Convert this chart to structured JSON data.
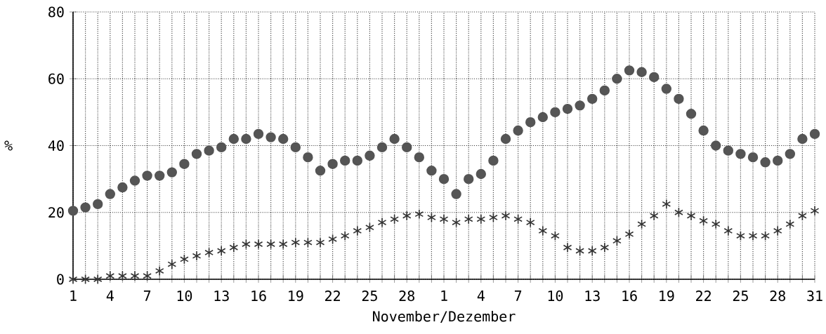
{
  "chart_data": {
    "type": "scatter",
    "xlabel": "November/Dezember",
    "ylabel": "%",
    "categories": [
      "1",
      null,
      null,
      "4",
      null,
      null,
      "7",
      null,
      null,
      "10",
      null,
      null,
      "13",
      null,
      null,
      "16",
      null,
      null,
      "19",
      null,
      null,
      "22",
      null,
      null,
      "25",
      null,
      null,
      "28",
      null,
      null,
      "1",
      null,
      null,
      "4",
      null,
      null,
      "7",
      null,
      null,
      "10",
      null,
      null,
      "13",
      null,
      null,
      "16",
      null,
      null,
      "19",
      null,
      null,
      "22",
      null,
      null,
      "25",
      null,
      null,
      "28",
      null,
      null,
      "31"
    ],
    "ylim": [
      0,
      80
    ],
    "yticks": [
      0,
      20,
      40,
      60,
      80
    ],
    "grid": true,
    "series": [
      {
        "color": "#555555",
        "marker": "circle",
        "values": [
          20.5,
          21.5,
          22.5,
          25.5,
          27.5,
          29.5,
          31,
          31,
          32,
          34.5,
          37.5,
          38.5,
          39.5,
          42,
          42,
          43.5,
          42.5,
          42,
          39.5,
          36.5,
          32.5,
          34.5,
          35.5,
          35.5,
          37,
          39.5,
          42,
          39.5,
          36.5,
          32.5,
          30,
          25.5,
          30,
          31.5,
          35.5,
          42,
          44.5,
          47,
          48.5,
          50,
          51,
          52,
          54,
          56.5,
          60,
          62.5,
          62,
          60.5,
          57,
          54,
          49.5,
          44.5,
          40,
          38.5,
          37.5,
          36.5,
          35,
          35.5,
          37.5,
          42,
          43.5
        ]
      },
      {
        "color": "#333333",
        "marker": "cross",
        "values": [
          0,
          0,
          0,
          1,
          1,
          1,
          1,
          2.5,
          4.5,
          6,
          7,
          8,
          8.5,
          9.5,
          10.5,
          10.5,
          10.5,
          10.5,
          11,
          11,
          11,
          12,
          13,
          14.5,
          15.5,
          17,
          18,
          19,
          19.5,
          18.5,
          18,
          17,
          18,
          18,
          18.5,
          19,
          18,
          17,
          14.5,
          13,
          9.5,
          8.5,
          8.5,
          9.5,
          11.5,
          13.5,
          16.5,
          19,
          22.5,
          20,
          19,
          17.5,
          16.5,
          14.5,
          13,
          13,
          13,
          14.5,
          16.5,
          19,
          20.5
        ]
      }
    ]
  }
}
